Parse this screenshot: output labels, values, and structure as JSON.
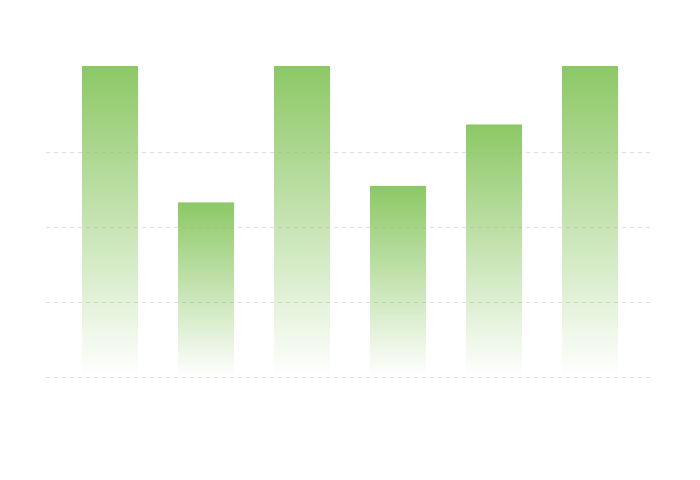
{
  "chart_data": {
    "type": "bar",
    "categories": [
      null,
      null,
      null,
      null,
      null,
      null
    ],
    "values": [
      4.15,
      2.33,
      4.15,
      2.55,
      3.37,
      4.15
    ],
    "color": "#8cc865",
    "ylim": [
      0,
      4.15
    ],
    "yticks": [
      0,
      1,
      2,
      3
    ],
    "grid": true
  }
}
